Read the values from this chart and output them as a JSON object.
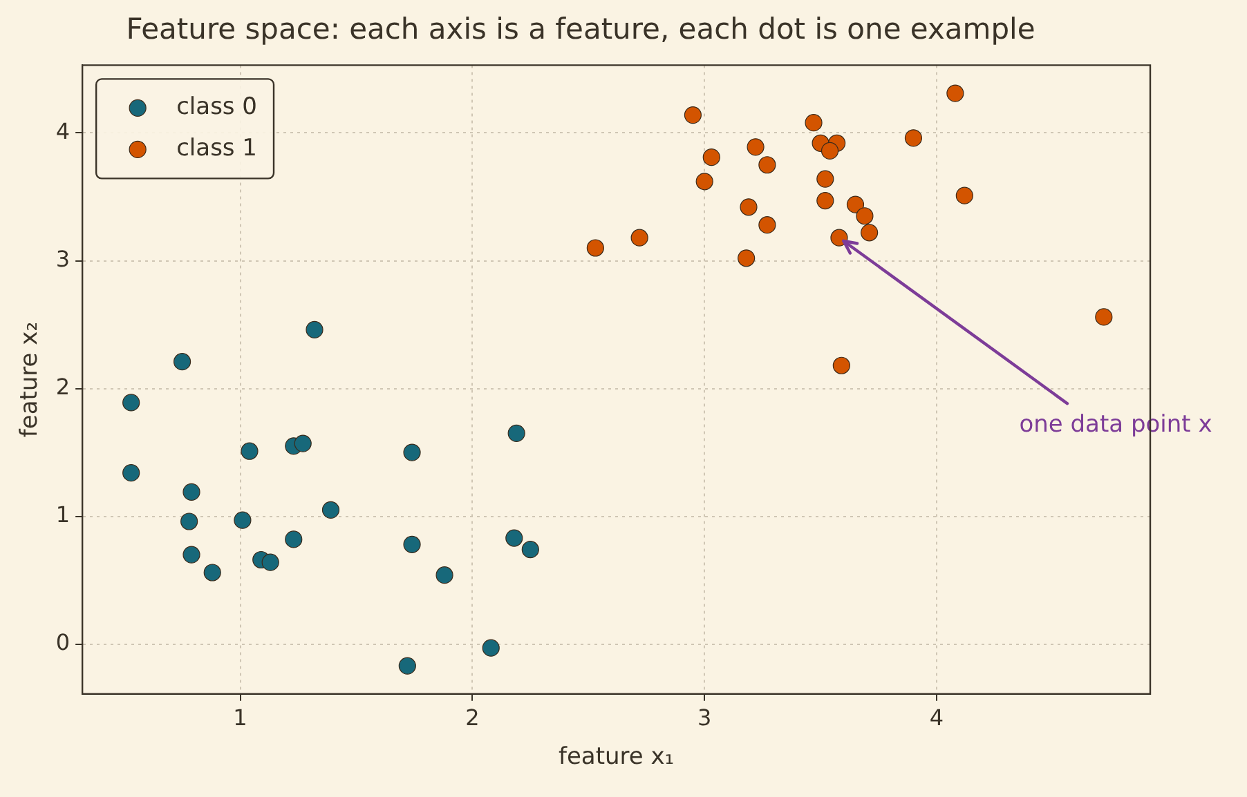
{
  "chart_data": {
    "type": "scatter",
    "title": "Feature space: each axis is a feature, each dot is one example",
    "xlabel": "feature x₁",
    "ylabel": "feature x₂",
    "xlim": [
      0.32,
      4.92
    ],
    "ylim": [
      -0.39,
      4.53
    ],
    "xticks": [
      1,
      2,
      3,
      4
    ],
    "yticks": [
      0,
      1,
      2,
      3,
      4
    ],
    "grid": true,
    "legend": "top left",
    "marker": "circle",
    "series": [
      {
        "name": "class 0",
        "color": "#17687a",
        "x": [
          0.53,
          0.75,
          1.32,
          0.53,
          0.79,
          0.78,
          0.79,
          0.88,
          1.01,
          1.04,
          1.23,
          1.27,
          1.09,
          1.13,
          1.23,
          1.39,
          1.74,
          1.74,
          1.88,
          2.19,
          2.18,
          2.25,
          1.72,
          2.08
        ],
        "values": [
          1.89,
          2.21,
          2.46,
          1.34,
          1.19,
          0.96,
          0.7,
          0.56,
          0.97,
          1.51,
          1.55,
          1.57,
          0.66,
          0.64,
          0.82,
          1.05,
          1.5,
          0.78,
          0.54,
          1.65,
          0.83,
          0.74,
          -0.17,
          -0.03
        ]
      },
      {
        "name": "class 1",
        "color": "#d35400",
        "x": [
          2.53,
          2.72,
          2.95,
          3.03,
          3.0,
          3.22,
          3.27,
          3.19,
          3.27,
          3.18,
          3.47,
          3.5,
          3.57,
          3.54,
          3.52,
          3.52,
          3.65,
          3.69,
          3.71,
          3.58,
          3.59,
          3.9,
          4.08,
          4.12,
          4.72
        ],
        "values": [
          3.1,
          3.18,
          4.14,
          3.81,
          3.62,
          3.89,
          3.75,
          3.42,
          3.28,
          3.02,
          4.08,
          3.92,
          3.92,
          3.86,
          3.64,
          3.47,
          3.44,
          3.35,
          3.22,
          3.18,
          2.18,
          3.96,
          4.31,
          3.51,
          2.56
        ]
      }
    ],
    "annotations": [
      {
        "text": "one data point x",
        "x": 3.58,
        "y": 3.18
      }
    ]
  }
}
